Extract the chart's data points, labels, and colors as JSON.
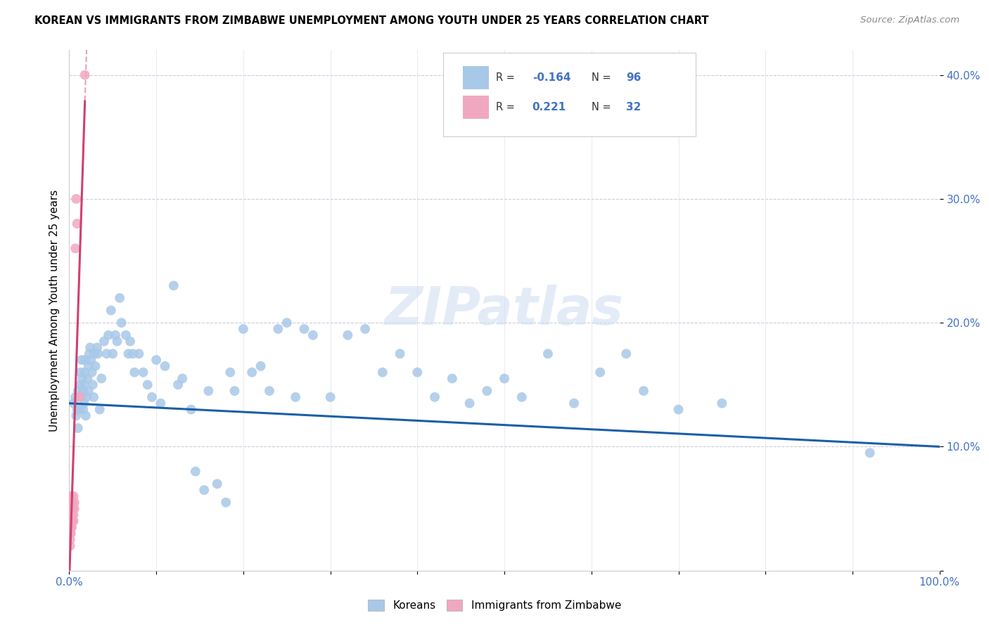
{
  "title": "KOREAN VS IMMIGRANTS FROM ZIMBABWE UNEMPLOYMENT AMONG YOUTH UNDER 25 YEARS CORRELATION CHART",
  "source": "Source: ZipAtlas.com",
  "ylabel": "Unemployment Among Youth under 25 years",
  "xlim": [
    0,
    1.0
  ],
  "ylim": [
    0,
    0.42
  ],
  "korean_color": "#a8c8e8",
  "zimbabwe_color": "#f0a8c0",
  "korean_trend_color": "#1a5fa8",
  "zimbabwe_trend_color": "#d04070",
  "zimbabwe_dash_color": "#e8a0b8",
  "watermark": "ZIPatlas",
  "legend_korean_R": "-0.164",
  "legend_korean_N": "96",
  "legend_zimbabwe_R": "0.221",
  "legend_zimbabwe_N": "32",
  "korean_scatter_x": [
    0.005,
    0.007,
    0.008,
    0.009,
    0.01,
    0.01,
    0.012,
    0.013,
    0.013,
    0.014,
    0.015,
    0.015,
    0.016,
    0.016,
    0.017,
    0.017,
    0.018,
    0.018,
    0.019,
    0.02,
    0.021,
    0.022,
    0.022,
    0.023,
    0.024,
    0.025,
    0.026,
    0.027,
    0.028,
    0.029,
    0.03,
    0.032,
    0.033,
    0.035,
    0.037,
    0.04,
    0.043,
    0.045,
    0.048,
    0.05,
    0.053,
    0.055,
    0.058,
    0.06,
    0.065,
    0.068,
    0.07,
    0.073,
    0.075,
    0.08,
    0.085,
    0.09,
    0.095,
    0.1,
    0.105,
    0.11,
    0.12,
    0.125,
    0.13,
    0.14,
    0.145,
    0.155,
    0.16,
    0.17,
    0.18,
    0.185,
    0.19,
    0.2,
    0.21,
    0.22,
    0.23,
    0.24,
    0.25,
    0.26,
    0.27,
    0.28,
    0.3,
    0.32,
    0.34,
    0.36,
    0.38,
    0.4,
    0.42,
    0.44,
    0.46,
    0.48,
    0.5,
    0.52,
    0.55,
    0.58,
    0.61,
    0.64,
    0.66,
    0.7,
    0.75,
    0.92
  ],
  "korean_scatter_y": [
    0.135,
    0.14,
    0.125,
    0.13,
    0.145,
    0.115,
    0.13,
    0.15,
    0.16,
    0.17,
    0.155,
    0.14,
    0.13,
    0.145,
    0.135,
    0.15,
    0.16,
    0.17,
    0.125,
    0.14,
    0.155,
    0.145,
    0.165,
    0.175,
    0.18,
    0.17,
    0.16,
    0.15,
    0.14,
    0.175,
    0.165,
    0.18,
    0.175,
    0.13,
    0.155,
    0.185,
    0.175,
    0.19,
    0.21,
    0.175,
    0.19,
    0.185,
    0.22,
    0.2,
    0.19,
    0.175,
    0.185,
    0.175,
    0.16,
    0.175,
    0.16,
    0.15,
    0.14,
    0.17,
    0.135,
    0.165,
    0.23,
    0.15,
    0.155,
    0.13,
    0.08,
    0.065,
    0.145,
    0.07,
    0.055,
    0.16,
    0.145,
    0.195,
    0.16,
    0.165,
    0.145,
    0.195,
    0.2,
    0.14,
    0.195,
    0.19,
    0.14,
    0.19,
    0.195,
    0.16,
    0.175,
    0.16,
    0.14,
    0.155,
    0.135,
    0.145,
    0.155,
    0.14,
    0.175,
    0.135,
    0.16,
    0.175,
    0.145,
    0.13,
    0.135,
    0.095
  ],
  "zimbabwe_scatter_x": [
    0.001,
    0.001,
    0.001,
    0.001,
    0.001,
    0.002,
    0.002,
    0.002,
    0.002,
    0.002,
    0.002,
    0.002,
    0.002,
    0.003,
    0.003,
    0.003,
    0.003,
    0.003,
    0.003,
    0.004,
    0.004,
    0.004,
    0.005,
    0.005,
    0.005,
    0.006,
    0.006,
    0.007,
    0.008,
    0.009,
    0.012,
    0.018
  ],
  "zimbabwe_scatter_y": [
    0.04,
    0.035,
    0.03,
    0.025,
    0.02,
    0.05,
    0.045,
    0.04,
    0.035,
    0.03,
    0.055,
    0.06,
    0.05,
    0.04,
    0.05,
    0.055,
    0.045,
    0.035,
    0.04,
    0.05,
    0.04,
    0.055,
    0.04,
    0.045,
    0.06,
    0.05,
    0.055,
    0.26,
    0.3,
    0.28,
    0.14,
    0.4
  ]
}
